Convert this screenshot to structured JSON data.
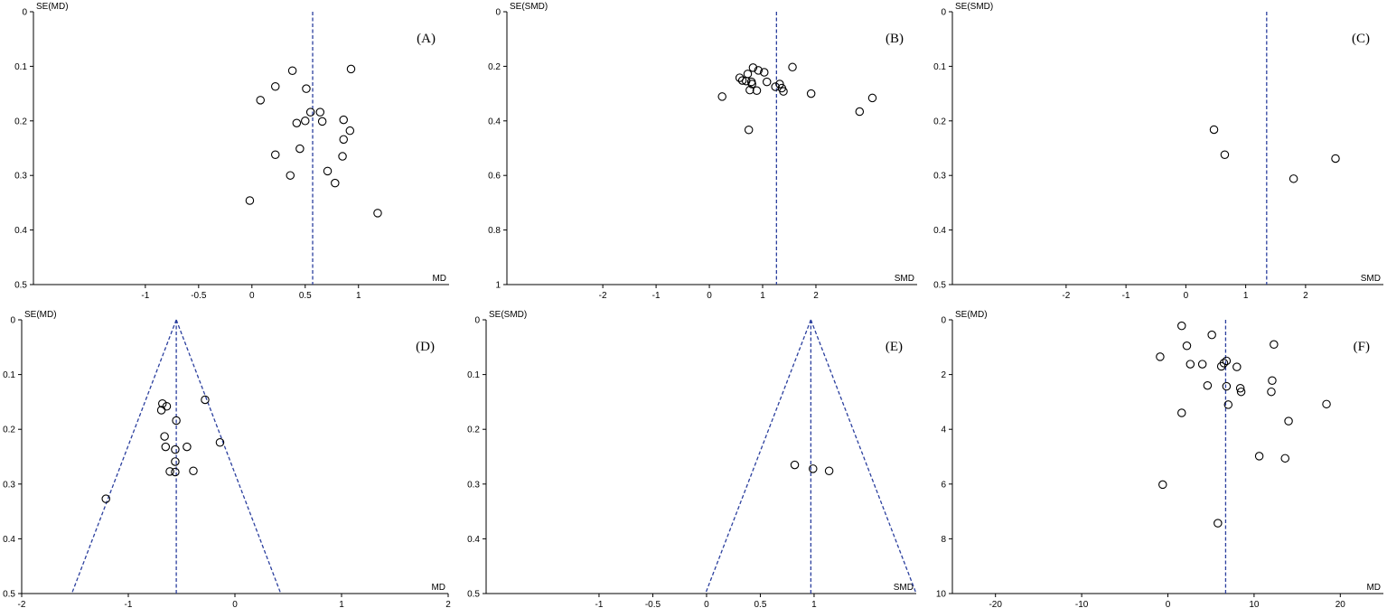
{
  "chart_data": [
    {
      "type": "scatter",
      "panel_label": "(A)",
      "xlabel": "MD",
      "ylabel": "SE(MD)",
      "xlim": [
        -2.05,
        1.85
      ],
      "ylim": [
        0,
        0.5
      ],
      "xticks": [
        {
          "v": -1,
          "t": "-1"
        },
        {
          "v": -0.5,
          "t": "-0.5"
        },
        {
          "v": 0,
          "t": "0"
        },
        {
          "v": 0.5,
          "t": "0.5"
        },
        {
          "v": 1,
          "t": "1"
        }
      ],
      "yticks": [
        {
          "v": 0,
          "t": "0"
        },
        {
          "v": 0.1,
          "t": "0.1"
        },
        {
          "v": 0.2,
          "t": "0.2"
        },
        {
          "v": 0.3,
          "t": "0.3"
        },
        {
          "v": 0.4,
          "t": "0.4"
        },
        {
          "v": 0.5,
          "t": "0.5"
        }
      ],
      "y_reversed": true,
      "pooled_estimate": 0.57,
      "funnel": false,
      "points": [
        [
          0.38,
          0.108
        ],
        [
          0.93,
          0.105
        ],
        [
          0.22,
          0.137
        ],
        [
          0.51,
          0.141
        ],
        [
          0.08,
          0.162
        ],
        [
          0.55,
          0.184
        ],
        [
          0.64,
          0.184
        ],
        [
          0.5,
          0.2
        ],
        [
          0.42,
          0.204
        ],
        [
          0.66,
          0.201
        ],
        [
          0.86,
          0.198
        ],
        [
          0.92,
          0.218
        ],
        [
          0.86,
          0.234
        ],
        [
          0.45,
          0.251
        ],
        [
          0.22,
          0.262
        ],
        [
          0.85,
          0.265
        ],
        [
          0.71,
          0.292
        ],
        [
          0.36,
          0.3
        ],
        [
          0.78,
          0.314
        ],
        [
          -0.02,
          0.346
        ],
        [
          1.18,
          0.369
        ]
      ]
    },
    {
      "type": "scatter",
      "panel_label": "(B)",
      "xlabel": "SMD",
      "ylabel": "SE(SMD)",
      "xlim": [
        -3.8,
        3.9
      ],
      "ylim": [
        0,
        1
      ],
      "xticks": [
        {
          "v": -2,
          "t": "-2"
        },
        {
          "v": -1,
          "t": "-1"
        },
        {
          "v": 0,
          "t": "0"
        },
        {
          "v": 1,
          "t": "1"
        },
        {
          "v": 2,
          "t": "2"
        }
      ],
      "yticks": [
        {
          "v": 0,
          "t": "0"
        },
        {
          "v": 0.2,
          "t": "0.2"
        },
        {
          "v": 0.4,
          "t": "0.4"
        },
        {
          "v": 0.6,
          "t": "0.6"
        },
        {
          "v": 0.8,
          "t": "0.8"
        },
        {
          "v": 1,
          "t": "1"
        }
      ],
      "y_reversed": true,
      "pooled_estimate": 1.26,
      "funnel": false,
      "points": [
        [
          0.82,
          0.205
        ],
        [
          1.56,
          0.203
        ],
        [
          0.92,
          0.215
        ],
        [
          1.03,
          0.222
        ],
        [
          0.72,
          0.228
        ],
        [
          0.57,
          0.242
        ],
        [
          0.62,
          0.252
        ],
        [
          0.69,
          0.254
        ],
        [
          0.79,
          0.257
        ],
        [
          1.08,
          0.257
        ],
        [
          0.8,
          0.265
        ],
        [
          1.32,
          0.265
        ],
        [
          1.24,
          0.275
        ],
        [
          1.36,
          0.28
        ],
        [
          0.76,
          0.287
        ],
        [
          0.89,
          0.289
        ],
        [
          1.39,
          0.292
        ],
        [
          1.91,
          0.3
        ],
        [
          0.24,
          0.311
        ],
        [
          3.06,
          0.316
        ],
        [
          2.82,
          0.366
        ],
        [
          0.74,
          0.433
        ]
      ]
    },
    {
      "type": "scatter",
      "panel_label": "(C)",
      "xlabel": "SMD",
      "ylabel": "SE(SMD)",
      "xlim": [
        -3.9,
        3.3
      ],
      "ylim": [
        0,
        0.5
      ],
      "xticks": [
        {
          "v": -2,
          "t": "-2"
        },
        {
          "v": -1,
          "t": "-1"
        },
        {
          "v": 0,
          "t": "0"
        },
        {
          "v": 1,
          "t": "1"
        },
        {
          "v": 2,
          "t": "2"
        }
      ],
      "yticks": [
        {
          "v": 0,
          "t": "0"
        },
        {
          "v": 0.1,
          "t": "0.1"
        },
        {
          "v": 0.2,
          "t": "0.2"
        },
        {
          "v": 0.3,
          "t": "0.3"
        },
        {
          "v": 0.4,
          "t": "0.4"
        },
        {
          "v": 0.5,
          "t": "0.5"
        }
      ],
      "y_reversed": true,
      "pooled_estimate": 1.35,
      "funnel": false,
      "points": [
        [
          0.47,
          0.216
        ],
        [
          0.65,
          0.262
        ],
        [
          2.5,
          0.269
        ],
        [
          1.8,
          0.306
        ]
      ]
    },
    {
      "type": "scatter",
      "panel_label": "(D)",
      "xlabel": "MD",
      "ylabel": "SE(MD)",
      "xlim": [
        -2,
        2
      ],
      "ylim": [
        0,
        0.5
      ],
      "xticks": [
        {
          "v": -2,
          "t": "-2"
        },
        {
          "v": -1,
          "t": "-1"
        },
        {
          "v": 0,
          "t": "0"
        },
        {
          "v": 1,
          "t": "1"
        },
        {
          "v": 2,
          "t": "2"
        }
      ],
      "yticks": [
        {
          "v": 0,
          "t": "0"
        },
        {
          "v": 0.1,
          "t": "0.1"
        },
        {
          "v": 0.2,
          "t": "0.2"
        },
        {
          "v": 0.3,
          "t": "0.3"
        },
        {
          "v": 0.4,
          "t": "0.4"
        },
        {
          "v": 0.5,
          "t": "0.5"
        }
      ],
      "y_reversed": true,
      "pooled_estimate": -0.55,
      "funnel": true,
      "points": [
        [
          -0.28,
          0.146
        ],
        [
          -0.68,
          0.153
        ],
        [
          -0.64,
          0.158
        ],
        [
          -0.69,
          0.165
        ],
        [
          -0.55,
          0.184
        ],
        [
          -0.66,
          0.213
        ],
        [
          -0.14,
          0.224
        ],
        [
          -0.45,
          0.232
        ],
        [
          -0.65,
          0.232
        ],
        [
          -0.56,
          0.237
        ],
        [
          -0.56,
          0.259
        ],
        [
          -0.39,
          0.276
        ],
        [
          -0.61,
          0.277
        ],
        [
          -0.56,
          0.278
        ],
        [
          -1.21,
          0.327
        ]
      ]
    },
    {
      "type": "scatter",
      "panel_label": "(E)",
      "xlabel": "SMD",
      "ylabel": "SE(SMD)",
      "xlim": [
        -2.05,
        1.95
      ],
      "ylim": [
        0,
        0.5
      ],
      "xticks": [
        {
          "v": -1,
          "t": "-1"
        },
        {
          "v": -0.5,
          "t": "-0.5"
        },
        {
          "v": 0,
          "t": "0"
        },
        {
          "v": 0.5,
          "t": "0.5"
        },
        {
          "v": 1,
          "t": "1"
        }
      ],
      "yticks": [
        {
          "v": 0,
          "t": "0"
        },
        {
          "v": 0.1,
          "t": "0.1"
        },
        {
          "v": 0.2,
          "t": "0.2"
        },
        {
          "v": 0.3,
          "t": "0.3"
        },
        {
          "v": 0.4,
          "t": "0.4"
        },
        {
          "v": 0.5,
          "t": "0.5"
        }
      ],
      "y_reversed": true,
      "pooled_estimate": 0.97,
      "funnel": true,
      "points": [
        [
          0.82,
          0.265
        ],
        [
          0.99,
          0.272
        ],
        [
          1.14,
          0.276
        ]
      ]
    },
    {
      "type": "scatter",
      "panel_label": "(F)",
      "xlabel": "MD",
      "ylabel": "SE(MD)",
      "xlim": [
        -25,
        25
      ],
      "ylim": [
        0,
        10
      ],
      "xticks": [
        {
          "v": -20,
          "t": "-20"
        },
        {
          "v": -10,
          "t": "-10"
        },
        {
          "v": 0,
          "t": "0"
        },
        {
          "v": 10,
          "t": "10"
        },
        {
          "v": 20,
          "t": "20"
        }
      ],
      "yticks": [
        {
          "v": 0,
          "t": "0"
        },
        {
          "v": 2,
          "t": "2"
        },
        {
          "v": 4,
          "t": "4"
        },
        {
          "v": 6,
          "t": "6"
        },
        {
          "v": 8,
          "t": "8"
        },
        {
          "v": 10,
          "t": "10"
        }
      ],
      "y_reversed": true,
      "pooled_estimate": 6.7,
      "funnel": false,
      "points": [
        [
          1.6,
          0.22
        ],
        [
          5.1,
          0.55
        ],
        [
          12.3,
          0.9
        ],
        [
          2.2,
          0.95
        ],
        [
          -0.9,
          1.35
        ],
        [
          6.8,
          1.5
        ],
        [
          6.5,
          1.58
        ],
        [
          2.6,
          1.62
        ],
        [
          4.0,
          1.62
        ],
        [
          6.2,
          1.7
        ],
        [
          8.0,
          1.72
        ],
        [
          12.1,
          2.22
        ],
        [
          4.6,
          2.4
        ],
        [
          6.8,
          2.43
        ],
        [
          8.4,
          2.5
        ],
        [
          8.5,
          2.63
        ],
        [
          12.0,
          2.63
        ],
        [
          7.0,
          3.1
        ],
        [
          18.4,
          3.08
        ],
        [
          1.6,
          3.4
        ],
        [
          14.0,
          3.7
        ],
        [
          10.6,
          4.98
        ],
        [
          13.6,
          5.06
        ],
        [
          -0.6,
          6.02
        ],
        [
          5.8,
          7.43
        ]
      ]
    }
  ]
}
